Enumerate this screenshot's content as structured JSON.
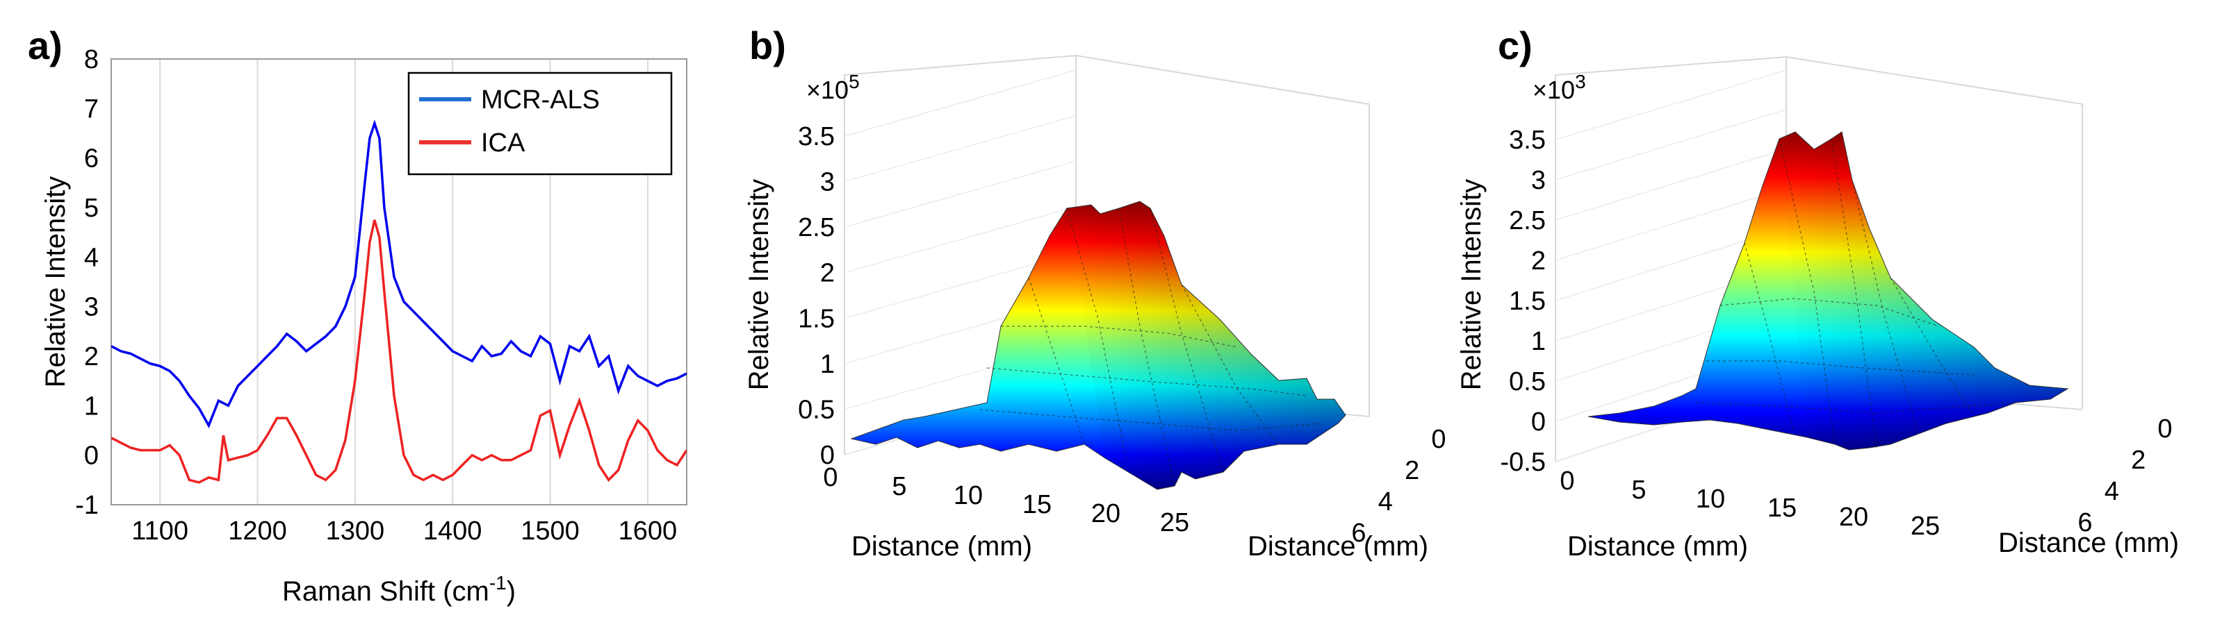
{
  "chart_data": [
    {
      "type": "line",
      "panel": "a)",
      "xlabel": "Raman Shift (cm",
      "xlabel_sup": "-1",
      "xlabel_end": ")",
      "ylabel": "Relative Intensity",
      "xlim": [
        1050,
        1640
      ],
      "ylim": [
        -1,
        8
      ],
      "xticks": [
        "1100",
        "1200",
        "1300",
        "1400",
        "1500",
        "1600"
      ],
      "yticks": [
        "-1",
        "0",
        "1",
        "2",
        "3",
        "4",
        "5",
        "6",
        "7",
        "8"
      ],
      "grid": "vertical",
      "legend_position": "top-right",
      "series": [
        {
          "name": "MCR-ALS",
          "color": "#0000ee",
          "legend_color": "#1f6fd1",
          "x": [
            1050,
            1060,
            1070,
            1080,
            1090,
            1100,
            1110,
            1120,
            1130,
            1140,
            1150,
            1160,
            1170,
            1180,
            1190,
            1200,
            1210,
            1220,
            1230,
            1240,
            1250,
            1260,
            1270,
            1280,
            1290,
            1300,
            1310,
            1315,
            1320,
            1325,
            1330,
            1340,
            1350,
            1360,
            1370,
            1380,
            1390,
            1400,
            1410,
            1420,
            1430,
            1440,
            1450,
            1460,
            1470,
            1480,
            1490,
            1500,
            1510,
            1520,
            1530,
            1540,
            1550,
            1560,
            1570,
            1580,
            1590,
            1600,
            1610,
            1620,
            1630,
            1640
          ],
          "y": [
            2.2,
            2.1,
            2.05,
            1.95,
            1.85,
            1.8,
            1.7,
            1.5,
            1.2,
            0.95,
            0.6,
            1.1,
            1.0,
            1.4,
            1.6,
            1.8,
            2.0,
            2.2,
            2.45,
            2.3,
            2.1,
            2.25,
            2.4,
            2.6,
            3.0,
            3.6,
            5.5,
            6.4,
            6.7,
            6.4,
            5.0,
            3.6,
            3.1,
            2.9,
            2.7,
            2.5,
            2.3,
            2.1,
            2.0,
            1.9,
            2.2,
            2.0,
            2.05,
            2.3,
            2.1,
            2.0,
            2.4,
            2.25,
            1.5,
            2.2,
            2.1,
            2.4,
            1.8,
            2.0,
            1.3,
            1.8,
            1.6,
            1.5,
            1.4,
            1.5,
            1.55,
            1.65
          ]
        },
        {
          "name": "ICA",
          "color": "#ee2222",
          "legend_color": "#ee3333",
          "x": [
            1050,
            1060,
            1070,
            1080,
            1090,
            1100,
            1110,
            1120,
            1130,
            1140,
            1150,
            1160,
            1165,
            1170,
            1180,
            1190,
            1200,
            1210,
            1220,
            1230,
            1240,
            1250,
            1260,
            1270,
            1280,
            1290,
            1300,
            1310,
            1315,
            1320,
            1325,
            1330,
            1340,
            1350,
            1360,
            1370,
            1380,
            1390,
            1400,
            1410,
            1420,
            1430,
            1440,
            1450,
            1460,
            1470,
            1480,
            1490,
            1500,
            1510,
            1520,
            1530,
            1540,
            1550,
            1560,
            1570,
            1580,
            1590,
            1600,
            1610,
            1620,
            1630,
            1640
          ],
          "y": [
            0.35,
            0.25,
            0.15,
            0.1,
            0.1,
            0.1,
            0.2,
            0.0,
            -0.5,
            -0.55,
            -0.45,
            -0.5,
            0.4,
            -0.1,
            -0.05,
            0.0,
            0.1,
            0.4,
            0.75,
            0.75,
            0.4,
            0.0,
            -0.4,
            -0.5,
            -0.3,
            0.3,
            1.5,
            3.3,
            4.3,
            4.75,
            4.4,
            3.3,
            1.2,
            0.0,
            -0.4,
            -0.5,
            -0.4,
            -0.5,
            -0.4,
            -0.2,
            0.0,
            -0.1,
            0.0,
            -0.1,
            -0.1,
            0.0,
            0.1,
            0.8,
            0.9,
            0.0,
            0.6,
            1.1,
            0.5,
            -0.2,
            -0.5,
            -0.3,
            0.3,
            0.7,
            0.5,
            0.1,
            -0.1,
            -0.2,
            0.1
          ]
        }
      ]
    },
    {
      "type": "surface3d",
      "panel": "b)",
      "multiplier": "×10",
      "multiplier_exp": "5",
      "zlabel": "Relative Intensity",
      "xlabel": "Distance (mm)",
      "ylabel": "Distance (mm)",
      "xticks": [
        "0",
        "5",
        "10",
        "15",
        "20",
        "25"
      ],
      "yticks": [
        "0",
        "2",
        "4",
        "6"
      ],
      "zticks": [
        "0",
        "0.5",
        "1",
        "1.5",
        "2",
        "2.5",
        "3",
        "3.5"
      ],
      "zlim": [
        0,
        3.5
      ],
      "surface_peak": 3.3
    },
    {
      "type": "surface3d",
      "panel": "c)",
      "multiplier": "×10",
      "multiplier_exp": "3",
      "zlabel": "Relative Intensity",
      "xlabel": "Distance (mm)",
      "ylabel": "Distance (mm)",
      "xticks": [
        "0",
        "5",
        "10",
        "15",
        "20",
        "25"
      ],
      "yticks": [
        "0",
        "2",
        "4",
        "6"
      ],
      "zticks": [
        "-0.5",
        "0",
        "0.5",
        "1",
        "1.5",
        "2",
        "2.5",
        "3",
        "3.5"
      ],
      "zlim": [
        -0.5,
        3.5
      ],
      "surface_peak": 3.5
    }
  ]
}
